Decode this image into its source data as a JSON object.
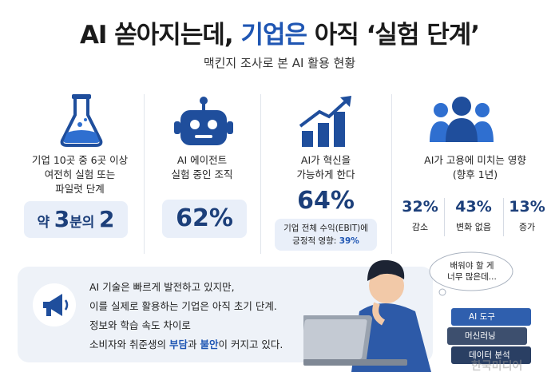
{
  "title": {
    "prefix": "AI 쏟아지는데,",
    "highlight": "기업은",
    "suffix": "아직 ‘실험 단계’"
  },
  "subtitle": "맥킨지 조사로 본 AI 활용 현황",
  "cards": [
    {
      "lines": [
        "기업 10곳 중 6곳 이상",
        "여전히 실험 또는",
        "파일럿 단계"
      ],
      "stat": [
        "약",
        "3",
        "분의",
        "2"
      ]
    },
    {
      "lines": [
        "AI 에이전트",
        "실험 중인 조직"
      ],
      "stat": "62%"
    },
    {
      "lines": [
        "AI가 혁신을",
        "가능하게 한다"
      ],
      "stat": "64%",
      "note": [
        "기업 전체 수익(EBIT)에",
        "긍정적 영향: ",
        "39%"
      ]
    },
    {
      "lines": [
        "AI가 고용에 미치는 영향",
        "(향후 1년)"
      ],
      "stats": [
        {
          "value": "32%",
          "label": "감소"
        },
        {
          "value": "43%",
          "label": "변화 없음"
        },
        {
          "value": "13%",
          "label": "증가"
        }
      ]
    }
  ],
  "message": {
    "lines": [
      "AI 기술은 빠르게 발전하고 있지만,",
      "이를 실제로 활용하는 기업은 아직 초기 단계.",
      "정보와 학습 속도 차이로"
    ],
    "last": [
      "소비자와 취준생의 ",
      "부담",
      "과 ",
      "불안",
      "이 커지고 있다."
    ]
  },
  "bubble": [
    "배워야 할 게",
    "너무 많은데..."
  ],
  "books": [
    "AI 도구",
    "머신러닝",
    "데이터 분석"
  ],
  "watermark": "한국미디어"
}
